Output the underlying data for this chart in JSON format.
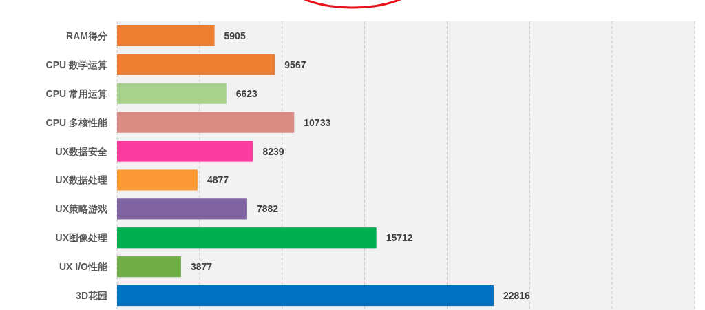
{
  "chart_data": {
    "type": "bar",
    "orientation": "horizontal",
    "categories": [
      "RAM得分",
      "CPU 数学运算",
      "CPU 常用运算",
      "CPU 多核性能",
      "UX数据安全",
      "UX数据处理",
      "UX策略游戏",
      "UX图像处理",
      "UX I/O性能",
      "3D花园"
    ],
    "values": [
      5905,
      9567,
      6623,
      10733,
      8239,
      4877,
      7882,
      15712,
      3877,
      22816
    ],
    "colors": [
      "#ed7d31",
      "#ed7d31",
      "#a9d18e",
      "#d98b84",
      "#fb3b9e",
      "#fd9a38",
      "#8064a2",
      "#00b050",
      "#70ad47",
      "#0070c0"
    ],
    "xlim": [
      0,
      35000
    ],
    "xticks": [
      {
        "value": 0,
        "label": null
      },
      {
        "value": 5000,
        "label": null
      },
      {
        "value": 10000,
        "label": null
      },
      {
        "value": 15000,
        "label": null
      },
      {
        "value": 20000,
        "label": null
      },
      {
        "value": 25000,
        "label": null
      },
      {
        "value": 30000,
        "label": null
      },
      {
        "value": 35000,
        "label": null
      }
    ],
    "grid": "x",
    "tick_labels": "y",
    "data_labels": true
  }
}
